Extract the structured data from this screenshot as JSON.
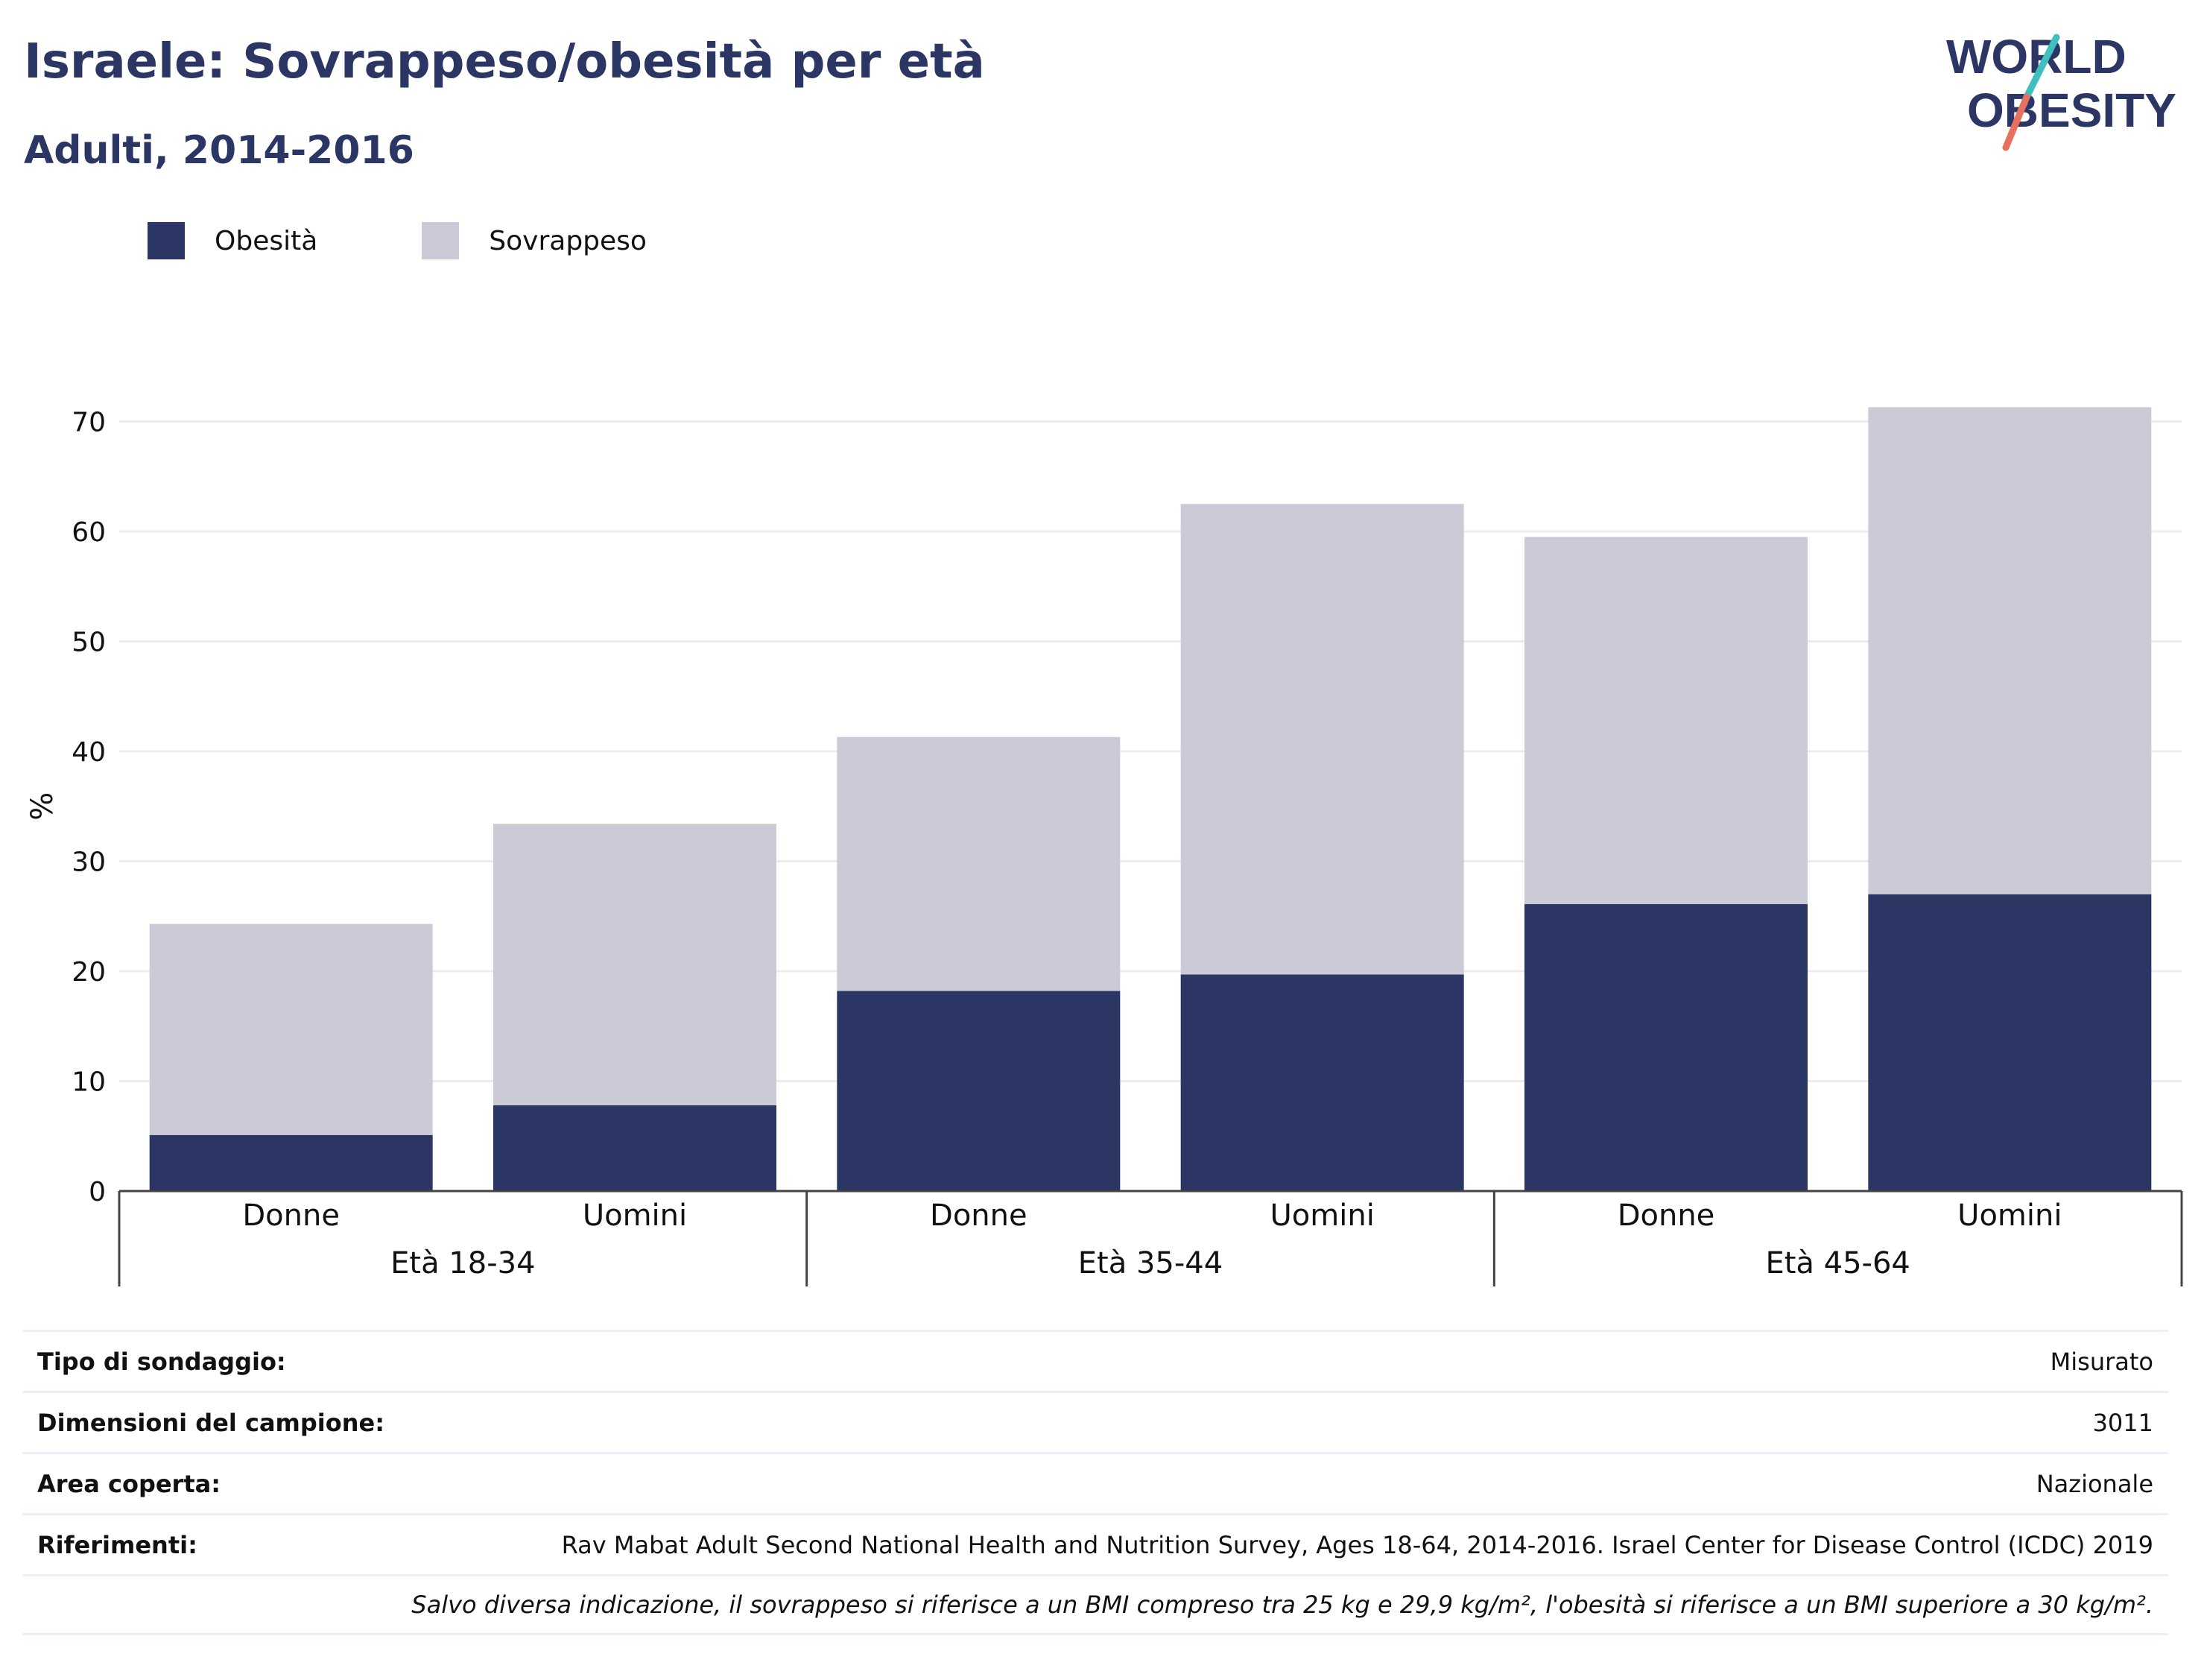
{
  "header": {
    "title": "Israele: Sovrappeso/obesità per età",
    "subtitle": "Adulti, 2014-2016"
  },
  "logo": {
    "line1": "WORLD",
    "line2": "OBESITY",
    "icon": "world-obesity-logo"
  },
  "colors": {
    "obesity": "#2b3664",
    "overweight": "#cacbd7",
    "title": "#2b3664",
    "logo_teal": "#3fbfbf",
    "logo_coral": "#e8705e"
  },
  "legend": [
    {
      "label": "Obesità",
      "color": "#2b3664"
    },
    {
      "label": "Sovrappeso",
      "color": "#cacbd7"
    }
  ],
  "chart_data": {
    "type": "bar",
    "stacked": true,
    "ylabel": "%",
    "ylim": [
      0,
      75
    ],
    "yticks": [
      0,
      10,
      20,
      30,
      40,
      50,
      60,
      70
    ],
    "grid": true,
    "legend_position": "top-left",
    "groups": [
      "Età 18-34",
      "Età 35-44",
      "Età 45-64"
    ],
    "categories": [
      "Donne",
      "Uomini",
      "Donne",
      "Uomini",
      "Donne",
      "Uomini"
    ],
    "series": [
      {
        "name": "Obesità",
        "values": [
          5.1,
          7.8,
          18.2,
          19.7,
          26.1,
          27.0
        ]
      },
      {
        "name": "Sovrappeso",
        "values": [
          19.2,
          25.6,
          23.1,
          42.8,
          33.4,
          44.3
        ]
      }
    ]
  },
  "info": [
    {
      "key": "Tipo di sondaggio:",
      "value": "Misurato"
    },
    {
      "key": "Dimensioni del campione:",
      "value": "3011"
    },
    {
      "key": "Area coperta:",
      "value": "Nazionale"
    },
    {
      "key": "Riferimenti:",
      "value": "Rav Mabat Adult Second National Health and Nutrition Survey, Ages 18-64, 2014-2016. Israel Center for Disease Control (ICDC) 2019"
    }
  ],
  "note": "Salvo diversa indicazione, il sovrappeso si riferisce a un BMI compreso tra 25 kg e 29,9 kg/m², l'obesità si riferisce a un BMI superiore a 30 kg/m²."
}
